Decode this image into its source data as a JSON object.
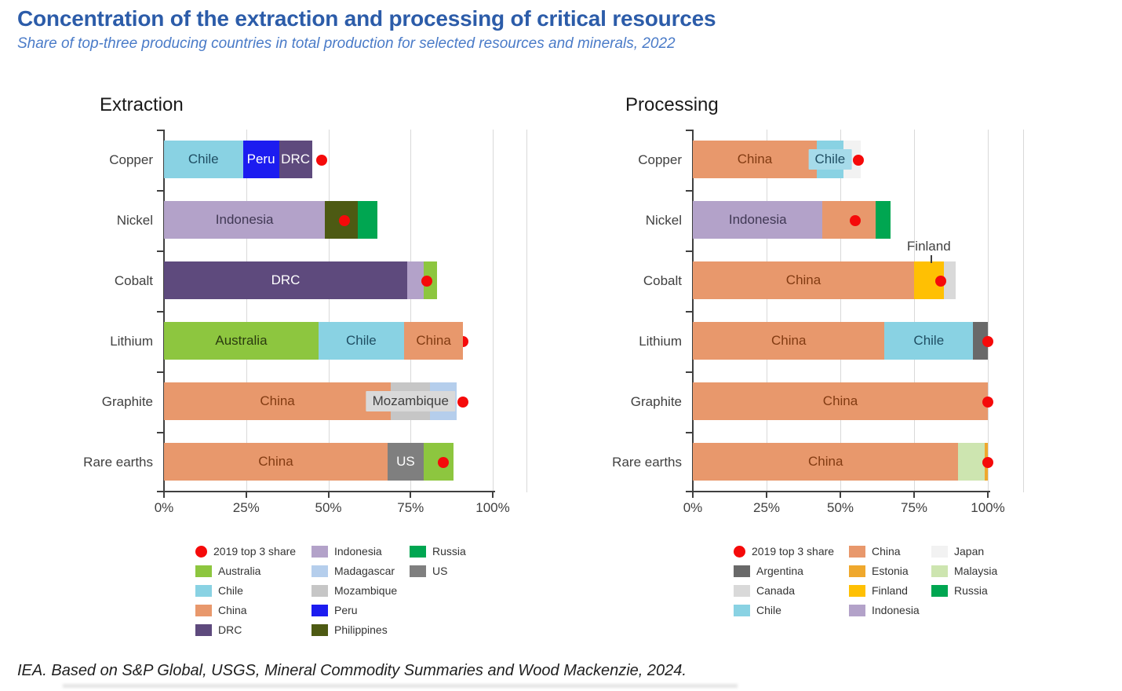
{
  "header": {
    "title": "Concentration of the extraction and processing of critical resources",
    "subtitle": "Share of top-three producing countries in total production for selected resources and minerals, 2022"
  },
  "footer": {
    "source": "IEA. Based on S&P Global, USGS, Mineral Commodity Summaries and Wood Mackenzie, 2024."
  },
  "legend_dot_label": "2019 top 3 share",
  "colors": {
    "title": "#2C5CA9",
    "subtitle": "#4A7BC8",
    "dot": "#F50A0A",
    "grid": "#D9D9D9",
    "axis": "#404040",
    "countries": {
      "Australia": "#8DC63F",
      "Chile": "#89D2E3",
      "China": "#E8986C",
      "DRC": "#5E4A7D",
      "Indonesia": "#B3A2C9",
      "Madagascar": "#B5CEEC",
      "Mozambique": "#C6C6C6",
      "Peru": "#1C1CF0",
      "Philippines": "#4D5A13",
      "Russia": "#00A651",
      "US": "#7F7F7F",
      "Argentina": "#696969",
      "Canada": "#D9D9D9",
      "Estonia": "#EFA82D",
      "Finland": "#FFC003",
      "Japan": "#F2F2F2",
      "Malaysia": "#CDE5B0"
    },
    "segment_label_text": {
      "Chile": "#1F4E63",
      "Peru": "#FFFFFF",
      "DRC": "#FFFFFF",
      "Indonesia": "#403854",
      "Australia": "#2A3B0F",
      "China": "#823B12",
      "Mozambique": "#404040",
      "US": "#FFFFFF"
    },
    "boxed_label_bg": {
      "Mozambique": "#D9D9D9",
      "Chile": "#A6DBEA"
    }
  },
  "chart_data": [
    {
      "id": "extraction",
      "type": "bar",
      "orientation": "horizontal_stacked",
      "title": "Extraction",
      "unit": "%",
      "xlim": [
        0,
        100
      ],
      "x_ticks": [
        "0%",
        "25%",
        "50%",
        "75%",
        "100%"
      ],
      "categories": [
        "Copper",
        "Nickel",
        "Cobalt",
        "Lithium",
        "Graphite",
        "Rare earths"
      ],
      "rows": [
        {
          "category": "Copper",
          "dot_2019_top3_share": 48,
          "segments": [
            {
              "country": "Chile",
              "value": 24,
              "label": "Chile"
            },
            {
              "country": "Peru",
              "value": 11,
              "label": "Peru"
            },
            {
              "country": "DRC",
              "value": 10,
              "label": "DRC"
            }
          ]
        },
        {
          "category": "Nickel",
          "dot_2019_top3_share": 55,
          "segments": [
            {
              "country": "Indonesia",
              "value": 49,
              "label": "Indonesia"
            },
            {
              "country": "Philippines",
              "value": 10
            },
            {
              "country": "Russia",
              "value": 6
            }
          ]
        },
        {
          "category": "Cobalt",
          "dot_2019_top3_share": 80,
          "segments": [
            {
              "country": "DRC",
              "value": 74,
              "label": "DRC"
            },
            {
              "country": "Indonesia",
              "value": 5
            },
            {
              "country": "Australia",
              "value": 4
            }
          ]
        },
        {
          "category": "Lithium",
          "dot_2019_top3_share": 90,
          "dot_clipped_at_bar_end": true,
          "segments": [
            {
              "country": "Australia",
              "value": 47,
              "label": "Australia"
            },
            {
              "country": "Chile",
              "value": 26,
              "label": "Chile"
            },
            {
              "country": "China",
              "value": 18,
              "label": "China"
            }
          ]
        },
        {
          "category": "Graphite",
          "dot_2019_top3_share": 91,
          "segments": [
            {
              "country": "China",
              "value": 69,
              "label": "China"
            },
            {
              "country": "Mozambique",
              "value": 12,
              "label": "Mozambique",
              "boxed": true
            },
            {
              "country": "Madagascar",
              "value": 8
            }
          ]
        },
        {
          "category": "Rare earths",
          "dot_2019_top3_share": 85,
          "segments": [
            {
              "country": "China",
              "value": 68,
              "label": "China"
            },
            {
              "country": "US",
              "value": 11,
              "label": "US"
            },
            {
              "country": "Australia",
              "value": 9
            }
          ]
        }
      ],
      "legend_columns": [
        [
          "2019 top 3 share",
          "Australia",
          "Chile",
          "China",
          "DRC"
        ],
        [
          "Indonesia",
          "Madagascar",
          "Mozambique",
          "Peru",
          "Philippines"
        ],
        [
          "Russia",
          "US"
        ]
      ]
    },
    {
      "id": "processing",
      "type": "bar",
      "orientation": "horizontal_stacked",
      "title": "Processing",
      "unit": "%",
      "xlim": [
        0,
        100
      ],
      "x_ticks": [
        "0%",
        "25%",
        "50%",
        "75%",
        "100%"
      ],
      "categories": [
        "Copper",
        "Nickel",
        "Cobalt",
        "Lithium",
        "Graphite",
        "Rare earths"
      ],
      "rows": [
        {
          "category": "Copper",
          "dot_2019_top3_share": 56,
          "segments": [
            {
              "country": "China",
              "value": 42,
              "label": "China"
            },
            {
              "country": "Chile",
              "value": 9,
              "label": "Chile",
              "boxed": true
            },
            {
              "country": "Japan",
              "value": 6
            }
          ]
        },
        {
          "category": "Nickel",
          "dot_2019_top3_share": 55,
          "segments": [
            {
              "country": "Indonesia",
              "value": 44,
              "label": "Indonesia"
            },
            {
              "country": "China",
              "value": 18
            },
            {
              "country": "Russia",
              "value": 5
            }
          ]
        },
        {
          "category": "Cobalt",
          "dot_2019_top3_share": 84,
          "segments": [
            {
              "country": "China",
              "value": 75,
              "label": "China"
            },
            {
              "country": "Finland",
              "value": 10,
              "callout_label": "Finland"
            },
            {
              "country": "Canada",
              "value": 4
            }
          ]
        },
        {
          "category": "Lithium",
          "dot_2019_top3_share": 100,
          "segments": [
            {
              "country": "China",
              "value": 65,
              "label": "China"
            },
            {
              "country": "Chile",
              "value": 30,
              "label": "Chile"
            },
            {
              "country": "Argentina",
              "value": 5
            }
          ]
        },
        {
          "category": "Graphite",
          "dot_2019_top3_share": 100,
          "segments": [
            {
              "country": "China",
              "value": 100,
              "label": "China"
            }
          ]
        },
        {
          "category": "Rare earths",
          "dot_2019_top3_share": 100,
          "segments": [
            {
              "country": "China",
              "value": 90,
              "label": "China"
            },
            {
              "country": "Malaysia",
              "value": 9
            },
            {
              "country": "Estonia",
              "value": 1
            }
          ]
        }
      ],
      "legend_columns": [
        [
          "2019 top 3 share",
          "Argentina",
          "Canada",
          "Chile"
        ],
        [
          "China",
          "Estonia",
          "Finland",
          "Indonesia"
        ],
        [
          "Japan",
          "Malaysia",
          "Russia"
        ]
      ]
    }
  ]
}
